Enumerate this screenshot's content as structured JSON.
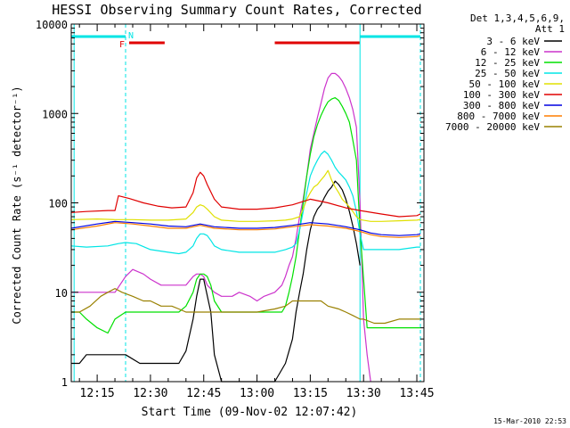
{
  "chart_data": {
    "type": "line",
    "title": "HESSI Observing Summary Count Rates, Corrected",
    "xlabel": "Start Time (09-Nov-02 12:07:42)",
    "ylabel": "Corrected Count Rate (s⁻¹ detector⁻¹)",
    "y_scale": "log",
    "ylim": [
      1,
      10000
    ],
    "xlim": [
      "12:07:42",
      "13:47:00"
    ],
    "x_ticks": [
      "12:15",
      "12:30",
      "12:45",
      "13:00",
      "13:15",
      "13:30",
      "13:45"
    ],
    "y_ticks": [
      "1",
      "10",
      "100",
      "1000",
      "10000"
    ],
    "legend_header": [
      "Det 1,3,4,5,6,9,",
      "Att 1"
    ],
    "grid": false,
    "footer": "15-Mar-2010 22:53",
    "flags": [
      {
        "label": "N",
        "color": "#00e5e5",
        "segments": [
          [
            "12:07:42",
            "12:23:00"
          ],
          [
            "13:29:00",
            "13:46:00"
          ]
        ]
      },
      {
        "label": "F",
        "color": "#e00000",
        "segments": [
          [
            "12:24:00",
            "12:34:00"
          ],
          [
            "13:05:00",
            "13:29:00"
          ]
        ]
      }
    ],
    "vertical_markers": [
      {
        "time": "12:08:30",
        "style": "solid",
        "color": "#00e5e5"
      },
      {
        "time": "12:23:00",
        "style": "dashed",
        "color": "#00e5e5"
      },
      {
        "time": "13:29:00",
        "style": "solid",
        "color": "#00e5e5"
      },
      {
        "time": "13:46:00",
        "style": "dashed",
        "color": "#00e5e5"
      }
    ],
    "series": [
      {
        "name": "3 - 6 keV",
        "color": "#000000",
        "x": [
          "12:07:42",
          "12:10",
          "12:12",
          "12:14",
          "12:17",
          "12:20",
          "12:23",
          "12:27",
          "12:30",
          "12:33",
          "12:35",
          "12:38",
          "12:40",
          "12:42",
          "12:43",
          "12:44",
          "12:45",
          "12:47",
          "12:48",
          "12:50",
          "12:55",
          "13:00",
          "13:05",
          "13:08",
          "13:09",
          "13:10",
          "13:11",
          "13:12",
          "13:13",
          "13:14",
          "13:15",
          "13:16",
          "13:17",
          "13:18",
          "13:19",
          "13:20",
          "13:21",
          "13:22",
          "13:23",
          "13:24",
          "13:25",
          "13:26",
          "13:27",
          "13:28",
          "13:29"
        ],
        "y": [
          1.6,
          1.6,
          2,
          2,
          2,
          2,
          2,
          1.6,
          1.6,
          1.6,
          1.6,
          1.6,
          2.2,
          5,
          9,
          14,
          14,
          6,
          2,
          1,
          1,
          1,
          1,
          1.6,
          2.2,
          3,
          6,
          10,
          16,
          30,
          50,
          70,
          85,
          95,
          115,
          135,
          150,
          175,
          160,
          140,
          110,
          80,
          55,
          35,
          20
        ]
      },
      {
        "name": "6 - 12 keV",
        "color": "#cc33cc",
        "x": [
          "12:07:42",
          "12:10",
          "12:12",
          "12:14",
          "12:17",
          "12:20",
          "12:23",
          "12:25",
          "12:28",
          "12:30",
          "12:33",
          "12:36",
          "12:38",
          "12:40",
          "12:42",
          "12:43",
          "12:44",
          "12:45",
          "12:46",
          "12:48",
          "12:50",
          "12:53",
          "12:55",
          "12:58",
          "13:00",
          "13:02",
          "13:05",
          "13:07",
          "13:08",
          "13:09",
          "13:10",
          "13:11",
          "13:12",
          "13:13",
          "13:14",
          "13:15",
          "13:16",
          "13:17",
          "13:18",
          "13:19",
          "13:20",
          "13:21",
          "13:22",
          "13:23",
          "13:24",
          "13:25",
          "13:26",
          "13:27",
          "13:28",
          "13:29",
          "13:30",
          "13:31",
          "13:32"
        ],
        "y": [
          10,
          10,
          10,
          10,
          10,
          10,
          15,
          18,
          16,
          14,
          12,
          12,
          12,
          12,
          15,
          16,
          16,
          15,
          12,
          10,
          9,
          9,
          10,
          9,
          8,
          9,
          10,
          12,
          15,
          20,
          25,
          40,
          70,
          110,
          200,
          400,
          600,
          900,
          1300,
          1900,
          2500,
          2800,
          2800,
          2600,
          2300,
          1900,
          1500,
          1100,
          700,
          100,
          5,
          2,
          1
        ]
      },
      {
        "name": "12 - 25 keV",
        "color": "#00e000",
        "x": [
          "12:07:42",
          "12:10",
          "12:12",
          "12:15",
          "12:18",
          "12:20",
          "12:23",
          "12:25",
          "12:28",
          "12:30",
          "12:33",
          "12:36",
          "12:38",
          "12:40",
          "12:42",
          "12:43",
          "12:44",
          "12:45",
          "12:46",
          "12:47",
          "12:48",
          "12:50",
          "12:53",
          "12:55",
          "12:58",
          "13:00",
          "13:03",
          "13:05",
          "13:07",
          "13:08",
          "13:09",
          "13:10",
          "13:11",
          "13:12",
          "13:13",
          "13:14",
          "13:15",
          "13:16",
          "13:17",
          "13:18",
          "13:19",
          "13:20",
          "13:21",
          "13:22",
          "13:23",
          "13:24",
          "13:25",
          "13:26",
          "13:27",
          "13:28",
          "13:29",
          "13:31",
          "13:35",
          "13:40",
          "13:45",
          "13:46"
        ],
        "y": [
          6,
          6,
          5,
          4,
          3.5,
          5,
          6,
          6,
          6,
          6,
          6,
          6,
          6,
          7,
          10,
          14,
          16,
          16,
          15,
          12,
          8,
          6,
          6,
          6,
          6,
          6,
          6,
          6,
          6,
          7,
          10,
          15,
          25,
          50,
          100,
          200,
          350,
          550,
          750,
          950,
          1150,
          1350,
          1450,
          1500,
          1400,
          1200,
          1000,
          800,
          500,
          300,
          50,
          4,
          4,
          4,
          4,
          4
        ]
      },
      {
        "name": "25 - 50 keV",
        "color": "#00e5e5",
        "x": [
          "12:07:42",
          "12:12",
          "12:18",
          "12:21",
          "12:23",
          "12:26",
          "12:30",
          "12:35",
          "12:38",
          "12:40",
          "12:42",
          "12:43",
          "12:44",
          "12:45",
          "12:46",
          "12:47",
          "12:48",
          "12:50",
          "12:55",
          "13:00",
          "13:05",
          "13:08",
          "13:10",
          "13:11",
          "13:12",
          "13:13",
          "13:14",
          "13:15",
          "13:16",
          "13:17",
          "13:18",
          "13:19",
          "13:20",
          "13:21",
          "13:22",
          "13:23",
          "13:24",
          "13:25",
          "13:26",
          "13:27",
          "13:28",
          "13:29",
          "13:30",
          "13:35",
          "13:40",
          "13:45",
          "13:46"
        ],
        "y": [
          33,
          32,
          33,
          35,
          36,
          35,
          30,
          28,
          27,
          28,
          33,
          40,
          45,
          45,
          43,
          38,
          33,
          30,
          28,
          28,
          28,
          30,
          32,
          35,
          50,
          80,
          130,
          200,
          250,
          300,
          350,
          380,
          350,
          300,
          250,
          220,
          200,
          180,
          150,
          120,
          80,
          45,
          30,
          30,
          30,
          32,
          32
        ]
      },
      {
        "name": "50 - 100 keV",
        "color": "#e0e000",
        "x": [
          "12:07:42",
          "12:15",
          "12:20",
          "12:25",
          "12:30",
          "12:35",
          "12:40",
          "12:42",
          "12:43",
          "12:44",
          "12:45",
          "12:46",
          "12:48",
          "12:50",
          "12:55",
          "13:00",
          "13:05",
          "13:08",
          "13:10",
          "13:12",
          "13:13",
          "13:14",
          "13:15",
          "13:16",
          "13:17",
          "13:18",
          "13:19",
          "13:20",
          "13:21",
          "13:22",
          "13:23",
          "13:24",
          "13:25",
          "13:26",
          "13:27",
          "13:28",
          "13:29",
          "13:32",
          "13:35",
          "13:40",
          "13:45",
          "13:46"
        ],
        "y": [
          65,
          66,
          65,
          65,
          64,
          64,
          66,
          78,
          90,
          95,
          92,
          85,
          70,
          64,
          62,
          62,
          63,
          64,
          66,
          70,
          85,
          110,
          130,
          150,
          160,
          180,
          200,
          230,
          180,
          150,
          130,
          110,
          100,
          90,
          80,
          70,
          65,
          62,
          62,
          63,
          64,
          65
        ]
      },
      {
        "name": "100 - 300 keV",
        "color": "#e00000",
        "x": [
          "12:07:42",
          "12:12",
          "12:18",
          "12:20",
          "12:21",
          "12:24",
          "12:28",
          "12:32",
          "12:36",
          "12:40",
          "12:42",
          "12:43",
          "12:44",
          "12:45",
          "12:46",
          "12:48",
          "12:50",
          "12:55",
          "13:00",
          "13:05",
          "13:10",
          "13:15",
          "13:20",
          "13:25",
          "13:29",
          "13:35",
          "13:40",
          "13:45",
          "13:46"
        ],
        "y": [
          78,
          80,
          82,
          82,
          120,
          112,
          100,
          92,
          88,
          90,
          130,
          190,
          220,
          200,
          160,
          110,
          90,
          85,
          85,
          88,
          95,
          110,
          100,
          88,
          82,
          75,
          70,
          72,
          75
        ]
      },
      {
        "name": "300 - 800 keV",
        "color": "#0000e0",
        "x": [
          "12:07:42",
          "12:15",
          "12:20",
          "12:25",
          "12:30",
          "12:35",
          "12:40",
          "12:44",
          "12:48",
          "12:55",
          "13:00",
          "13:05",
          "13:10",
          "13:15",
          "13:20",
          "13:25",
          "13:29",
          "13:32",
          "13:35",
          "13:40",
          "13:45",
          "13:46"
        ],
        "y": [
          52,
          58,
          62,
          60,
          58,
          55,
          54,
          58,
          54,
          52,
          52,
          53,
          56,
          60,
          58,
          54,
          50,
          46,
          44,
          43,
          44,
          45
        ]
      },
      {
        "name": "800 - 7000 keV",
        "color": "#ff7f00",
        "x": [
          "12:07:42",
          "12:15",
          "12:20",
          "12:25",
          "12:30",
          "12:35",
          "12:40",
          "12:44",
          "12:48",
          "12:55",
          "13:00",
          "13:05",
          "13:10",
          "13:15",
          "13:20",
          "13:25",
          "13:29",
          "13:32",
          "13:35",
          "13:40",
          "13:45",
          "13:46"
        ],
        "y": [
          50,
          55,
          60,
          58,
          55,
          52,
          52,
          56,
          52,
          50,
          50,
          51,
          54,
          57,
          55,
          52,
          48,
          44,
          42,
          41,
          42,
          43
        ]
      },
      {
        "name": "7000 - 20000 keV",
        "color": "#998000",
        "x": [
          "12:07:42",
          "12:10",
          "12:13",
          "12:16",
          "12:18",
          "12:20",
          "12:22",
          "12:25",
          "12:28",
          "12:30",
          "12:33",
          "12:36",
          "12:38",
          "12:40",
          "12:42",
          "12:44",
          "12:46",
          "12:48",
          "12:50",
          "12:55",
          "13:00",
          "13:05",
          "13:08",
          "13:10",
          "13:12",
          "13:15",
          "13:18",
          "13:20",
          "13:23",
          "13:25",
          "13:27",
          "13:29",
          "13:30",
          "13:33",
          "13:36",
          "13:40",
          "13:43",
          "13:45",
          "13:46"
        ],
        "y": [
          6,
          6,
          7,
          9,
          10,
          11,
          10,
          9,
          8,
          8,
          7,
          7,
          6.5,
          6,
          6,
          6,
          6,
          6,
          6,
          6,
          6,
          6.5,
          7,
          8,
          8,
          8,
          8,
          7,
          6.5,
          6,
          5.5,
          5,
          5,
          4.5,
          4.5,
          5,
          5,
          5,
          5
        ]
      }
    ]
  }
}
